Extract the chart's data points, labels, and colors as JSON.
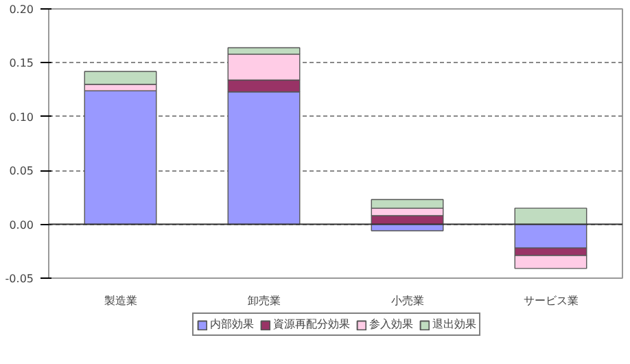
{
  "chart_data": {
    "type": "bar",
    "stacked": true,
    "categories": [
      "製造業",
      "卸売業",
      "小売業",
      "サービス業"
    ],
    "series": [
      {
        "name": "内部効果",
        "color": "#9999ff",
        "values": [
          0.124,
          0.123,
          -0.006,
          -0.022
        ]
      },
      {
        "name": "資源再配分効果",
        "color": "#993366",
        "values": [
          0,
          0.011,
          0.008,
          -0.007
        ]
      },
      {
        "name": "参入効果",
        "color": "#ffcce6",
        "values": [
          0.006,
          0.024,
          0.007,
          -0.012
        ]
      },
      {
        "name": "退出効果",
        "color": "#c0dcc0",
        "values": [
          0.012,
          0.006,
          0.008,
          0.015
        ]
      }
    ],
    "ylim": [
      -0.05,
      0.2
    ],
    "yticks": [
      {
        "value": -0.05,
        "label": "-0.05"
      },
      {
        "value": 0,
        "label": "0.00"
      },
      {
        "value": 0.05,
        "label": "0.05"
      },
      {
        "value": 0.1,
        "label": "0.10"
      },
      {
        "value": 0.15,
        "label": "0.15"
      },
      {
        "value": 0.2,
        "label": "0.20"
      }
    ],
    "grid": "y",
    "legend": "bottom"
  }
}
